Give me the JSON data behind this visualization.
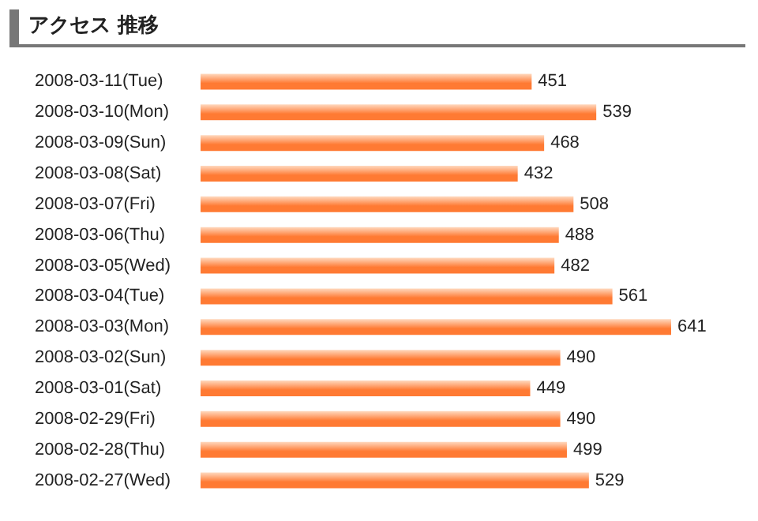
{
  "chart_data": {
    "type": "bar",
    "orientation": "horizontal",
    "title": "アクセス 推移",
    "categories": [
      "2008-03-11(Tue)",
      "2008-03-10(Mon)",
      "2008-03-09(Sun)",
      "2008-03-08(Sat)",
      "2008-03-07(Fri)",
      "2008-03-06(Thu)",
      "2008-03-05(Wed)",
      "2008-03-04(Tue)",
      "2008-03-03(Mon)",
      "2008-03-02(Sun)",
      "2008-03-01(Sat)",
      "2008-02-29(Fri)",
      "2008-02-28(Thu)",
      "2008-02-27(Wed)"
    ],
    "values": [
      451,
      539,
      468,
      432,
      508,
      488,
      482,
      561,
      641,
      490,
      449,
      490,
      499,
      529
    ],
    "color": "#ff7a33",
    "data_labels": true
  }
}
